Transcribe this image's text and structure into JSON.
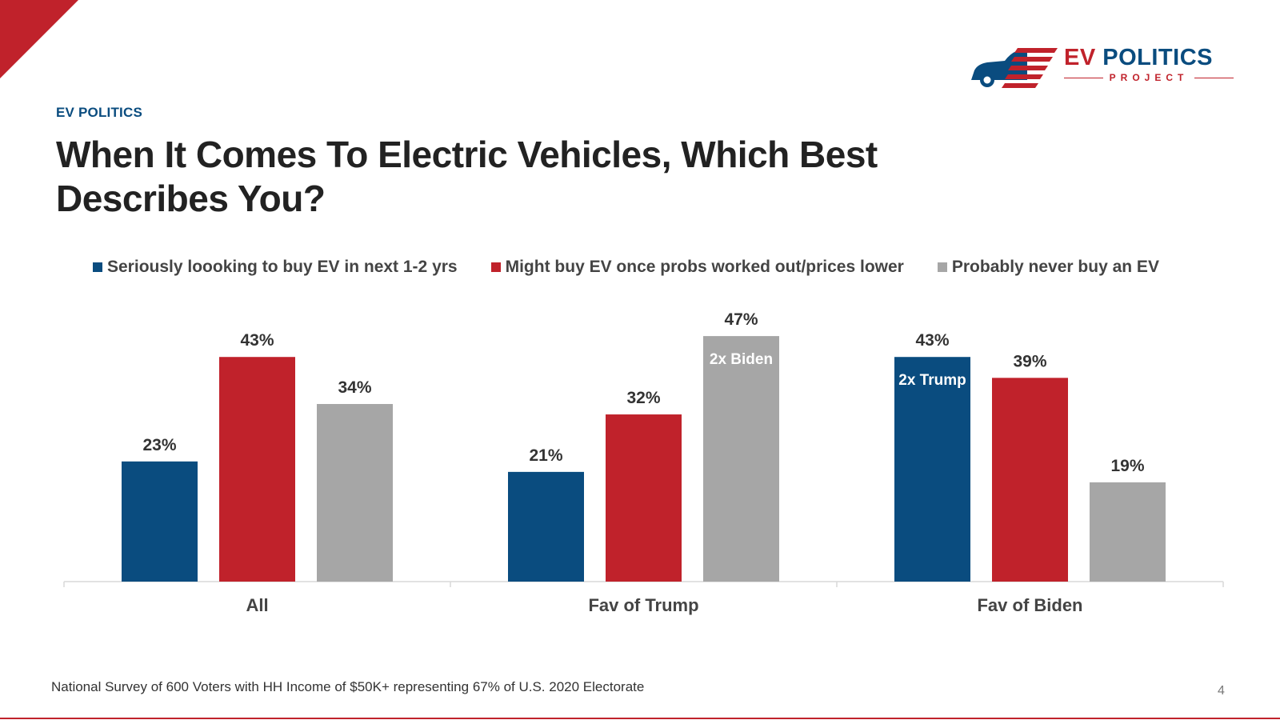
{
  "header": {
    "eyebrow": "EV POLITICS",
    "title": "When It Comes To Electric Vehicles, Which Best Describes You?"
  },
  "logo": {
    "name_ev": "EV",
    "name_rest": "POLITICS",
    "sub": "PROJECT",
    "icon": "car-with-flag-stripes-icon"
  },
  "colors": {
    "blue": "#0a4c7f",
    "red": "#c0222b",
    "gray": "#a6a6a6",
    "accent": "#c0222b"
  },
  "chart_data": {
    "type": "bar",
    "categories": [
      "All",
      "Fav of Trump",
      "Fav of Biden"
    ],
    "series": [
      {
        "name": "Seriously loooking to buy EV in next 1-2 yrs",
        "values": [
          23,
          21,
          43
        ],
        "color": "#0a4c7f"
      },
      {
        "name": "Might buy EV once probs worked out/prices lower",
        "values": [
          43,
          32,
          39
        ],
        "color": "#c0222b"
      },
      {
        "name": "Probably never buy an EV",
        "values": [
          34,
          47,
          19
        ],
        "color": "#a6a6a6"
      }
    ],
    "value_format": "%",
    "annotations": [
      {
        "category": "Fav of Trump",
        "series": 2,
        "text": "2x Biden"
      },
      {
        "category": "Fav of Biden",
        "series": 0,
        "text": "2x Trump"
      }
    ],
    "ylim": [
      0,
      50
    ],
    "grid": false,
    "legend": "top"
  },
  "footer": {
    "note": "National Survey of 600 Voters with HH Income of $50K+ representing 67% of U.S. 2020 Electorate",
    "page": "4"
  }
}
